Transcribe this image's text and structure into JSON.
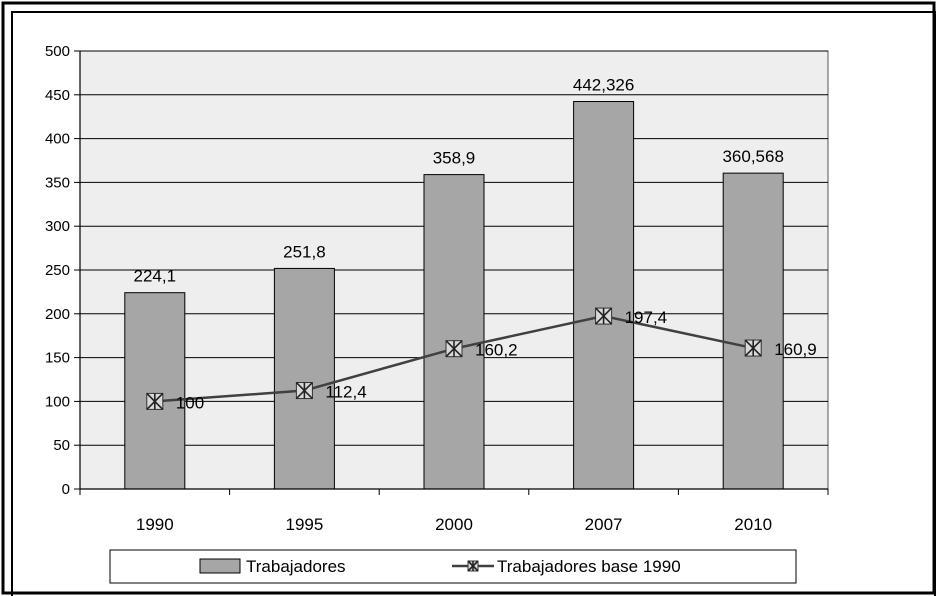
{
  "chart_data": {
    "type": "bar",
    "categories": [
      "1990",
      "1995",
      "2000",
      "2007",
      "2010"
    ],
    "ylim": [
      0,
      500
    ],
    "yticks": [
      0,
      50,
      100,
      150,
      200,
      250,
      300,
      350,
      400,
      450,
      500
    ],
    "grid": true,
    "legend_position": "bottom",
    "series": [
      {
        "name": "Trabajadores",
        "kind": "bar",
        "color": "#a6a6a6",
        "values": [
          224.1,
          251.8,
          358.9,
          442.326,
          360.568
        ],
        "labels": [
          "224,1",
          "251,8",
          "358,9",
          "442,326",
          "360,568"
        ]
      },
      {
        "name": "Trabajadores base 1990",
        "kind": "line",
        "color": "#404040",
        "marker": "star-x",
        "values": [
          100,
          112.4,
          160.2,
          197.4,
          160.9
        ],
        "labels": [
          "100",
          "112,4",
          "160,2",
          "197,4",
          "160,9"
        ]
      }
    ]
  }
}
